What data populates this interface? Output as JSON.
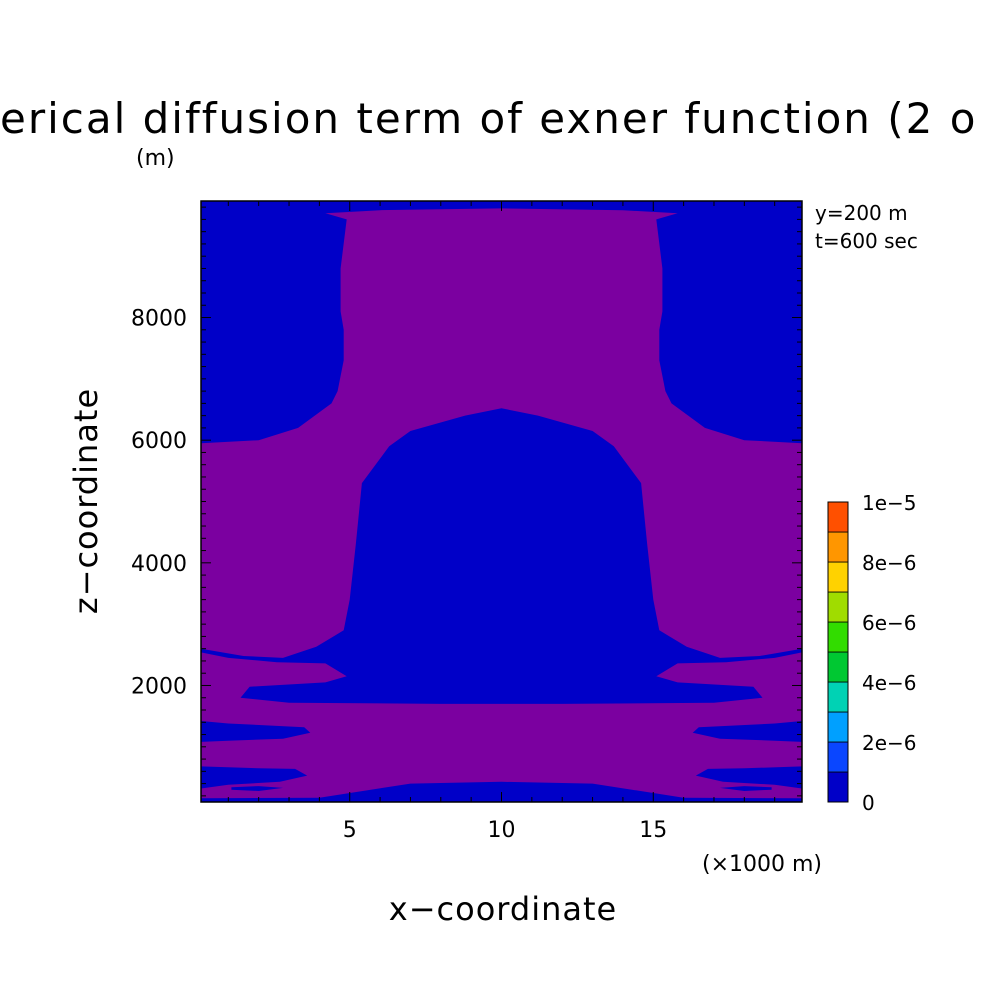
{
  "chart_data": {
    "type": "heatmap",
    "title": "erical diffusion term of exner function (2 o",
    "title_unit": "(m)",
    "xlabel": "x−coordinate",
    "ylabel": "z−coordinate",
    "x_unit": "(×1000 m)",
    "annotations": [
      "y=200 m",
      "t=600 sec"
    ],
    "xlim": [
      0.1,
      19.9
    ],
    "ylim": [
      100,
      9900
    ],
    "x_ticks": [
      5,
      10,
      15
    ],
    "x_tick_labels": [
      "5",
      "10",
      "15"
    ],
    "y_ticks": [
      2000,
      4000,
      6000,
      8000
    ],
    "y_tick_labels": [
      "2000",
      "4000",
      "6000",
      "8000"
    ],
    "colorbar": {
      "levels": [
        0,
        1e-06,
        2e-06,
        3e-06,
        4e-06,
        5e-06,
        6e-06,
        7e-06,
        8e-06,
        9e-06,
        1e-05
      ],
      "colors": [
        "#0000c8",
        "#0a46ff",
        "#00a0ff",
        "#00d2b4",
        "#00c832",
        "#32dc00",
        "#a0dc00",
        "#ffd200",
        "#ff9600",
        "#ff5000",
        "#e61e1e"
      ],
      "labels": [
        "0",
        "2e−6",
        "4e−6",
        "6e−6",
        "8e−6",
        "1e−5"
      ],
      "label_values": [
        0,
        2e-06,
        4e-06,
        6e-06,
        8e-06,
        1e-05
      ]
    },
    "field_colors": {
      "background_band": "#0000c8",
      "band_1e-6_to_2e-6": "#7b00a0"
    },
    "regions": [
      {
        "band": "0 to 1e-6",
        "x": [
          0.1,
          19.9
        ],
        "z": [
          100,
          9900
        ],
        "description": "background"
      },
      {
        "band": "above 1e-6",
        "polygon": [
          [
            0.1,
            5950
          ],
          [
            2,
            6000
          ],
          [
            3.3,
            6200
          ],
          [
            4.4,
            6600
          ],
          [
            4.6,
            6800
          ],
          [
            4.8,
            7300
          ],
          [
            4.8,
            7800
          ],
          [
            4.7,
            8100
          ],
          [
            4.7,
            8800
          ],
          [
            4.9,
            9600
          ],
          [
            4.2,
            9700
          ],
          [
            6,
            9750
          ],
          [
            10,
            9780
          ],
          [
            14,
            9750
          ],
          [
            15.8,
            9700
          ],
          [
            15.1,
            9600
          ],
          [
            15.3,
            8800
          ],
          [
            15.3,
            8100
          ],
          [
            15.2,
            7800
          ],
          [
            15.2,
            7300
          ],
          [
            15.4,
            6800
          ],
          [
            15.6,
            6600
          ],
          [
            16.7,
            6200
          ],
          [
            18,
            6000
          ],
          [
            19.9,
            5950
          ],
          [
            19.9,
            2600
          ],
          [
            18.5,
            2480
          ],
          [
            17.2,
            2450
          ],
          [
            16.1,
            2630
          ],
          [
            15.2,
            2900
          ],
          [
            15,
            3400
          ],
          [
            14.8,
            4300
          ],
          [
            14.6,
            5300
          ],
          [
            13.7,
            5900
          ],
          [
            13,
            6150
          ],
          [
            11.2,
            6400
          ],
          [
            10,
            6520
          ],
          [
            8.8,
            6400
          ],
          [
            7,
            6150
          ],
          [
            6.3,
            5900
          ],
          [
            5.4,
            5300
          ],
          [
            5.2,
            4300
          ],
          [
            5,
            3400
          ],
          [
            4.8,
            2900
          ],
          [
            3.9,
            2630
          ],
          [
            2.8,
            2450
          ],
          [
            1.5,
            2480
          ],
          [
            0.1,
            2600
          ],
          [
            0.1,
            2540
          ],
          [
            1,
            2450
          ],
          [
            2.6,
            2380
          ],
          [
            4.2,
            2360
          ],
          [
            4.9,
            2150
          ],
          [
            4.2,
            2050
          ],
          [
            1.7,
            1980
          ],
          [
            1.4,
            1800
          ],
          [
            3,
            1720
          ],
          [
            8,
            1700
          ],
          [
            12,
            1700
          ],
          [
            17,
            1720
          ],
          [
            18.6,
            1800
          ],
          [
            18.3,
            1980
          ],
          [
            15.8,
            2050
          ],
          [
            15.1,
            2150
          ],
          [
            15.8,
            2360
          ],
          [
            17.4,
            2380
          ],
          [
            19,
            2450
          ],
          [
            19.9,
            2540
          ],
          [
            19.9,
            1420
          ],
          [
            19,
            1380
          ],
          [
            16.5,
            1320
          ],
          [
            16.3,
            1230
          ],
          [
            17.2,
            1130
          ],
          [
            19,
            1100
          ],
          [
            19.9,
            1080
          ],
          [
            19.9,
            680
          ],
          [
            18,
            650
          ],
          [
            16.8,
            640
          ],
          [
            16.4,
            530
          ],
          [
            17.3,
            430
          ],
          [
            19,
            380
          ],
          [
            19.9,
            320
          ],
          [
            19.9,
            160
          ],
          [
            16,
            170
          ],
          [
            13,
            400
          ],
          [
            10,
            430
          ],
          [
            7,
            400
          ],
          [
            4,
            170
          ],
          [
            0.1,
            160
          ],
          [
            0.1,
            320
          ],
          [
            1,
            380
          ],
          [
            2.7,
            430
          ],
          [
            3.6,
            530
          ],
          [
            3.2,
            640
          ],
          [
            2,
            650
          ],
          [
            0.1,
            680
          ],
          [
            0.1,
            1080
          ],
          [
            1,
            1100
          ],
          [
            2.8,
            1130
          ],
          [
            3.7,
            1230
          ],
          [
            3.5,
            1320
          ],
          [
            1,
            1380
          ],
          [
            0.1,
            1420
          ]
        ]
      },
      {
        "band": "0 to 1e-6",
        "polygon": [
          [
            4,
            2550
          ],
          [
            8,
            2620
          ],
          [
            10,
            2640
          ],
          [
            12,
            2620
          ],
          [
            16,
            2550
          ],
          [
            12,
            2480
          ],
          [
            10,
            2470
          ],
          [
            8,
            2480
          ]
        ],
        "description": "thin sliver near z=2500"
      },
      {
        "band": "0 to 1e-6",
        "polygon": [
          [
            1.1,
            300
          ],
          [
            2,
            280
          ],
          [
            2.8,
            330
          ],
          [
            2,
            360
          ],
          [
            1.1,
            340
          ]
        ],
        "description": "small lens bottom-left"
      },
      {
        "band": "0 to 1e-6",
        "polygon": [
          [
            17.2,
            330
          ],
          [
            18,
            280
          ],
          [
            18.9,
            300
          ],
          [
            18.9,
            340
          ],
          [
            18,
            360
          ]
        ],
        "description": "small lens bottom-right"
      }
    ]
  }
}
